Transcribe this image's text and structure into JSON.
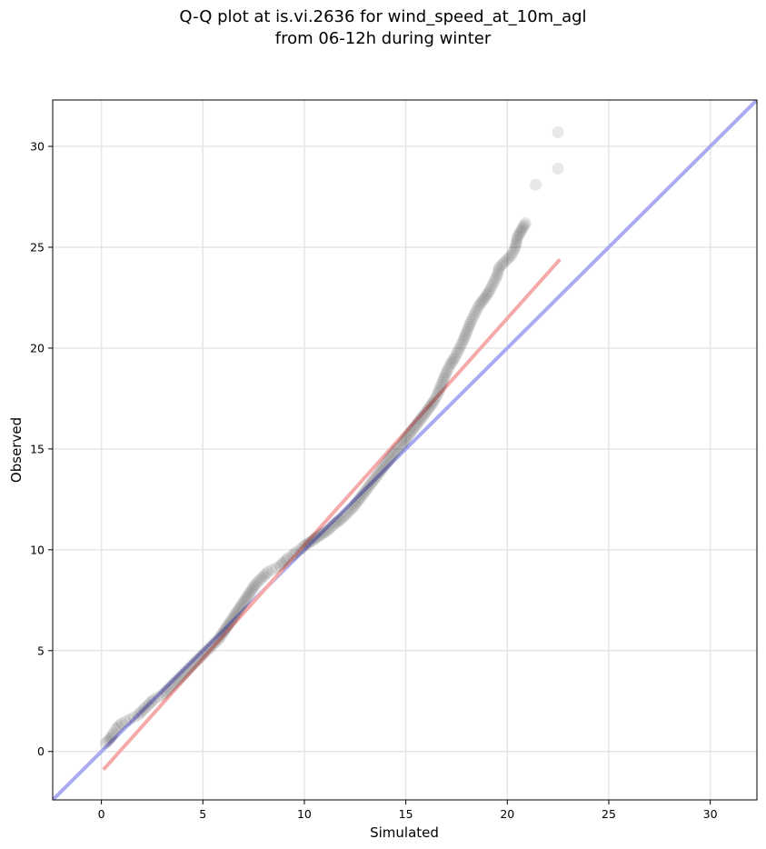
{
  "chart_data": {
    "type": "scatter",
    "title_line1": "Q-Q plot at is.vi.2636 for wind_speed_at_10m_agl",
    "title_line2": "from 06-12h during winter",
    "xlabel": "Simulated",
    "ylabel": "Observed",
    "xlim": [
      -2.4,
      32.3
    ],
    "ylim": [
      -2.4,
      32.3
    ],
    "xticks": [
      "0",
      "5",
      "10",
      "15",
      "20",
      "25",
      "30"
    ],
    "yticks": [
      "0",
      "5",
      "10",
      "15",
      "20",
      "25",
      "30"
    ],
    "grid": true,
    "reference_line": {
      "name": "1:1",
      "color": "#aaaaf2",
      "from": [
        -2.4,
        -2.4
      ],
      "to": [
        32.3,
        32.3
      ]
    },
    "fit_line": {
      "color": "#f5aaaa",
      "from": [
        0.1,
        -0.9
      ],
      "to": [
        22.6,
        24.4
      ]
    },
    "points_color": "#000000",
    "points": [
      [
        0.2,
        0.4
      ],
      [
        0.4,
        0.6
      ],
      [
        0.6,
        0.9
      ],
      [
        0.7,
        1.1
      ],
      [
        0.8,
        1.2
      ],
      [
        0.9,
        1.3
      ],
      [
        1.0,
        1.4
      ],
      [
        1.2,
        1.5
      ],
      [
        1.4,
        1.6
      ],
      [
        1.6,
        1.7
      ],
      [
        1.8,
        1.8
      ],
      [
        2.0,
        2.0
      ],
      [
        2.2,
        2.2
      ],
      [
        2.4,
        2.4
      ],
      [
        2.6,
        2.6
      ],
      [
        2.8,
        2.7
      ],
      [
        3.0,
        2.8
      ],
      [
        3.2,
        3.0
      ],
      [
        3.4,
        3.2
      ],
      [
        3.6,
        3.4
      ],
      [
        3.8,
        3.6
      ],
      [
        4.0,
        3.8
      ],
      [
        4.2,
        4.0
      ],
      [
        4.4,
        4.2
      ],
      [
        4.6,
        4.4
      ],
      [
        4.8,
        4.6
      ],
      [
        5.0,
        4.8
      ],
      [
        5.2,
        5.0
      ],
      [
        5.4,
        5.2
      ],
      [
        5.6,
        5.4
      ],
      [
        5.8,
        5.6
      ],
      [
        6.0,
        5.9
      ],
      [
        6.2,
        6.2
      ],
      [
        6.4,
        6.5
      ],
      [
        6.6,
        6.8
      ],
      [
        6.8,
        7.1
      ],
      [
        7.0,
        7.4
      ],
      [
        7.2,
        7.7
      ],
      [
        7.4,
        8.0
      ],
      [
        7.6,
        8.3
      ],
      [
        7.8,
        8.5
      ],
      [
        8.0,
        8.7
      ],
      [
        8.2,
        8.9
      ],
      [
        8.4,
        9.0
      ],
      [
        8.6,
        9.1
      ],
      [
        8.8,
        9.2
      ],
      [
        9.0,
        9.4
      ],
      [
        9.2,
        9.6
      ],
      [
        9.4,
        9.7
      ],
      [
        9.6,
        9.9
      ],
      [
        9.8,
        10.0
      ],
      [
        10.0,
        10.2
      ],
      [
        10.3,
        10.4
      ],
      [
        10.6,
        10.6
      ],
      [
        10.9,
        10.8
      ],
      [
        11.2,
        11.0
      ],
      [
        11.5,
        11.3
      ],
      [
        11.8,
        11.5
      ],
      [
        12.1,
        11.8
      ],
      [
        12.4,
        12.1
      ],
      [
        12.7,
        12.5
      ],
      [
        13.0,
        12.9
      ],
      [
        13.3,
        13.3
      ],
      [
        13.6,
        13.7
      ],
      [
        13.9,
        14.1
      ],
      [
        14.2,
        14.5
      ],
      [
        14.5,
        14.9
      ],
      [
        14.8,
        15.2
      ],
      [
        15.0,
        15.5
      ],
      [
        15.3,
        15.9
      ],
      [
        15.6,
        16.3
      ],
      [
        15.9,
        16.7
      ],
      [
        16.2,
        17.1
      ],
      [
        16.4,
        17.4
      ],
      [
        16.6,
        17.8
      ],
      [
        16.8,
        18.3
      ],
      [
        17.0,
        18.8
      ],
      [
        17.2,
        19.2
      ],
      [
        17.4,
        19.5
      ],
      [
        17.6,
        19.9
      ],
      [
        17.8,
        20.3
      ],
      [
        18.0,
        20.8
      ],
      [
        18.2,
        21.3
      ],
      [
        18.4,
        21.7
      ],
      [
        18.6,
        22.1
      ],
      [
        18.9,
        22.5
      ],
      [
        19.1,
        22.8
      ],
      [
        19.3,
        23.2
      ],
      [
        19.5,
        23.6
      ],
      [
        19.6,
        24.0
      ],
      [
        19.8,
        24.2
      ],
      [
        20.0,
        24.4
      ],
      [
        20.2,
        24.6
      ],
      [
        20.4,
        25.0
      ],
      [
        20.5,
        25.5
      ],
      [
        20.9,
        26.2
      ],
      [
        21.4,
        28.1
      ],
      [
        22.5,
        28.9
      ],
      [
        22.5,
        30.7
      ]
    ]
  }
}
